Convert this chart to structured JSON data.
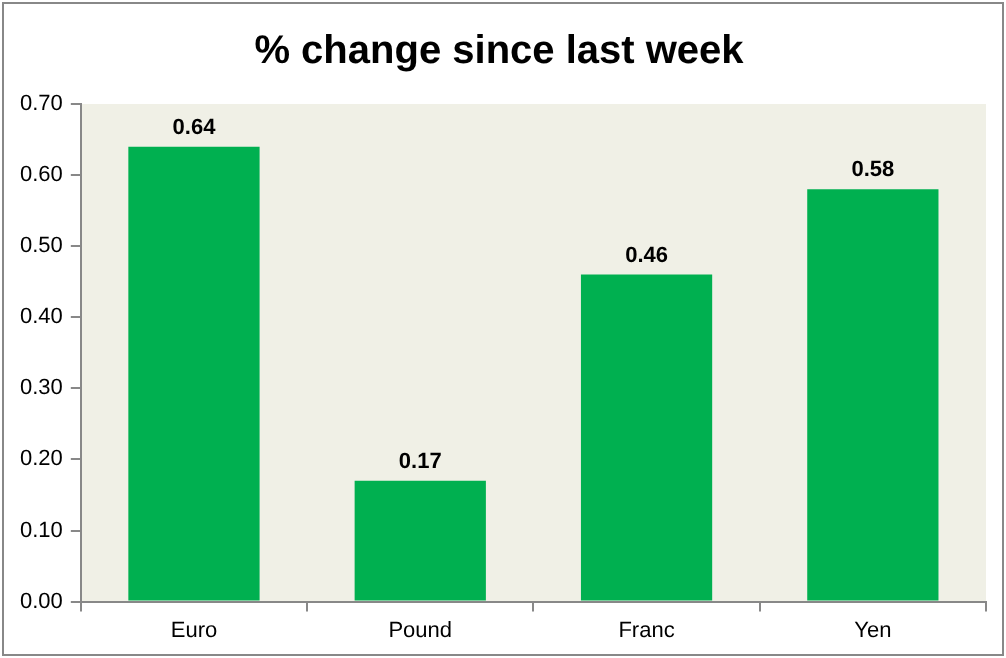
{
  "chart_data": {
    "type": "bar",
    "title": "% change since last week",
    "categories": [
      "Euro",
      "Pound",
      "Franc",
      "Yen"
    ],
    "values": [
      0.64,
      0.17,
      0.46,
      0.58
    ],
    "color": "#00b050",
    "ylim": [
      0,
      0.7
    ],
    "yticks": [
      {
        "value": 0,
        "label": "0.00"
      },
      {
        "value": 0.1,
        "label": "0.10"
      },
      {
        "value": 0.2,
        "label": "0.20"
      },
      {
        "value": 0.3,
        "label": "0.30"
      },
      {
        "value": 0.4,
        "label": "0.40"
      },
      {
        "value": 0.5,
        "label": "0.50"
      },
      {
        "value": 0.6,
        "label": "0.60"
      },
      {
        "value": 0.7,
        "label": "0.70"
      }
    ],
    "grid": false,
    "legend": false,
    "data_labels": true
  }
}
